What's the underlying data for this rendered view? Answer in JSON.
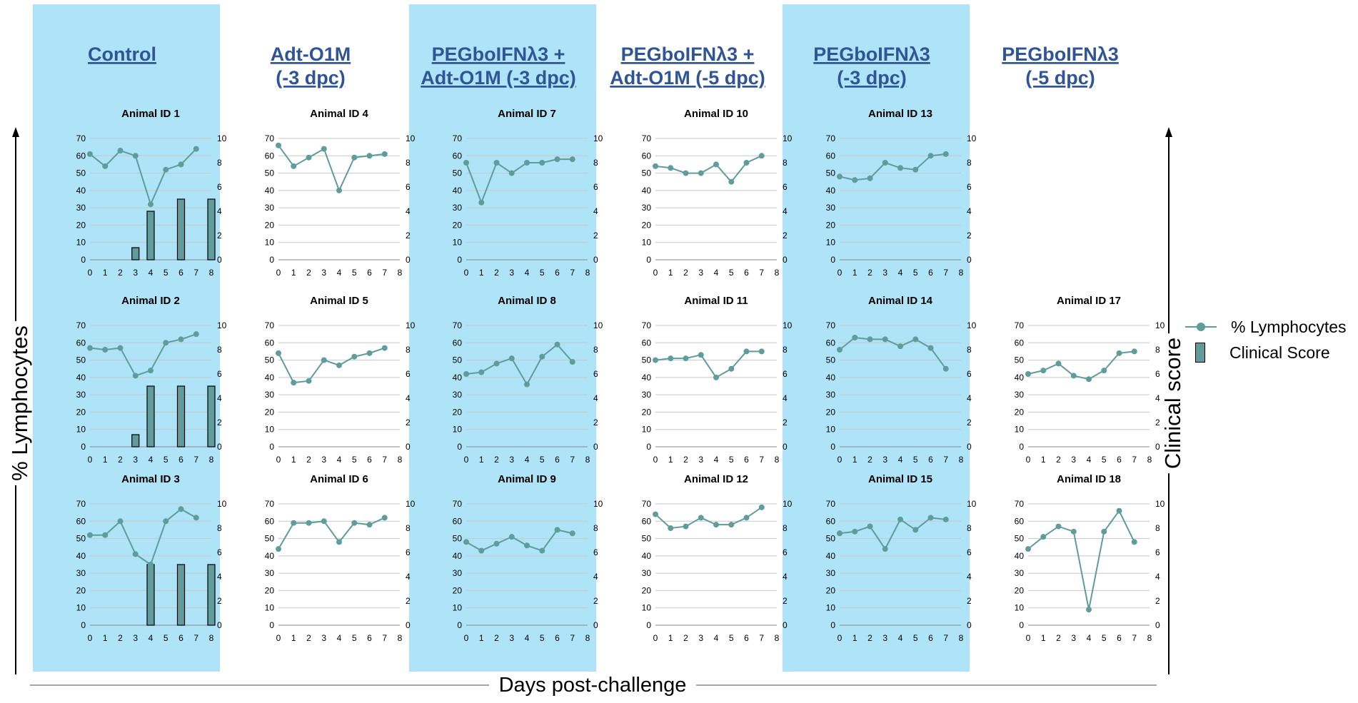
{
  "colors": {
    "panel_bg": "#aee3f8",
    "series": "#5f9c9b",
    "title_link": "#2f5597",
    "grid": "#c8c8c8"
  },
  "axis_labels": {
    "x": "Days post-challenge",
    "y_left": "% Lymphocytes",
    "y_right": "Clinical score"
  },
  "legend": [
    {
      "label": "% Lymphocytes",
      "icon": "line-with-dot"
    },
    {
      "label": "Clinical Score",
      "icon": "bar"
    }
  ],
  "groups": [
    {
      "title": "Control",
      "highlighted": true
    },
    {
      "title": "Adt-O1M\n(-3 dpc)",
      "highlighted": false
    },
    {
      "title": "PEGboIFNλ3 +\nAdt-O1M (-3 dpc)",
      "highlighted": true
    },
    {
      "title": "PEGboIFNλ3 +\nAdt-O1M (-5 dpc)",
      "highlighted": false
    },
    {
      "title": "PEGboIFNλ3\n(-3 dpc)",
      "highlighted": true
    },
    {
      "title": "PEGboIFNλ3\n(-5 dpc)",
      "highlighted": false
    }
  ],
  "chart_data": [
    {
      "type": "line",
      "title": "Animal ID 1",
      "group": 0,
      "row": 0,
      "x_ticks": [
        "0",
        "1",
        "2",
        "3",
        "4",
        "5",
        "6",
        "7",
        "8"
      ],
      "ylim": [
        0,
        70
      ],
      "y2lim": [
        0,
        10
      ],
      "lymphocytes": {
        "x": [
          0,
          1,
          2,
          3,
          4,
          5,
          6,
          7
        ],
        "y": [
          61,
          54,
          63,
          60,
          32,
          52,
          55,
          64
        ]
      },
      "clinical_score": {
        "x": [
          3,
          4,
          6,
          8
        ],
        "y": [
          1,
          4,
          5,
          5
        ]
      }
    },
    {
      "type": "line",
      "title": "Animal ID 2",
      "group": 0,
      "row": 1,
      "x_ticks": [
        "0",
        "1",
        "2",
        "3",
        "4",
        "5",
        "6",
        "7",
        "8"
      ],
      "ylim": [
        0,
        70
      ],
      "y2lim": [
        0,
        10
      ],
      "lymphocytes": {
        "x": [
          0,
          1,
          2,
          3,
          4,
          5,
          6,
          7
        ],
        "y": [
          57,
          56,
          57,
          41,
          44,
          60,
          62,
          65
        ]
      },
      "clinical_score": {
        "x": [
          3,
          4,
          6,
          8
        ],
        "y": [
          1,
          5,
          5,
          5
        ]
      }
    },
    {
      "type": "line",
      "title": "Animal ID 3",
      "group": 0,
      "row": 2,
      "x_ticks": [
        "0",
        "1",
        "2",
        "3",
        "4",
        "5",
        "6",
        "7",
        "8"
      ],
      "ylim": [
        0,
        70
      ],
      "y2lim": [
        0,
        10
      ],
      "lymphocytes": {
        "x": [
          0,
          1,
          2,
          3,
          4,
          5,
          6,
          7
        ],
        "y": [
          52,
          52,
          60,
          41,
          35,
          60,
          67,
          62
        ]
      },
      "clinical_score": {
        "x": [
          4,
          6,
          8
        ],
        "y": [
          5,
          5,
          5
        ]
      }
    },
    {
      "type": "line",
      "title": "Animal ID 4",
      "group": 1,
      "row": 0,
      "x_ticks": [
        "0",
        "1",
        "2",
        "3",
        "4",
        "5",
        "6",
        "7",
        "8"
      ],
      "ylim": [
        0,
        70
      ],
      "y2lim": [
        0,
        10
      ],
      "lymphocytes": {
        "x": [
          0,
          1,
          2,
          3,
          4,
          5,
          6,
          7
        ],
        "y": [
          66,
          54,
          59,
          64,
          40,
          59,
          60,
          61
        ]
      },
      "clinical_score": {
        "x": [],
        "y": []
      }
    },
    {
      "type": "line",
      "title": "Animal ID 5",
      "group": 1,
      "row": 1,
      "x_ticks": [
        "0",
        "1",
        "2",
        "3",
        "4",
        "5",
        "6",
        "7",
        "8"
      ],
      "ylim": [
        0,
        70
      ],
      "y2lim": [
        0,
        10
      ],
      "lymphocytes": {
        "x": [
          0,
          1,
          2,
          3,
          4,
          5,
          6,
          7
        ],
        "y": [
          54,
          37,
          38,
          50,
          47,
          52,
          54,
          57
        ]
      },
      "clinical_score": {
        "x": [],
        "y": []
      }
    },
    {
      "type": "line",
      "title": "Animal ID 6",
      "group": 1,
      "row": 2,
      "x_ticks": [
        "0",
        "1",
        "2",
        "3",
        "4",
        "5",
        "6",
        "7",
        "8"
      ],
      "ylim": [
        0,
        70
      ],
      "y2lim": [
        0,
        10
      ],
      "lymphocytes": {
        "x": [
          0,
          1,
          2,
          3,
          4,
          5,
          6,
          7
        ],
        "y": [
          44,
          59,
          59,
          60,
          48,
          59,
          58,
          62
        ]
      },
      "clinical_score": {
        "x": [],
        "y": []
      }
    },
    {
      "type": "line",
      "title": "Animal ID 7",
      "group": 2,
      "row": 0,
      "x_ticks": [
        "0",
        "1",
        "2",
        "3",
        "4",
        "5",
        "6",
        "7",
        "8"
      ],
      "ylim": [
        0,
        70
      ],
      "y2lim": [
        0,
        10
      ],
      "lymphocytes": {
        "x": [
          0,
          1,
          2,
          3,
          4,
          5,
          6,
          7
        ],
        "y": [
          56,
          33,
          56,
          50,
          56,
          56,
          58,
          58
        ]
      },
      "clinical_score": {
        "x": [],
        "y": []
      }
    },
    {
      "type": "line",
      "title": "Animal ID 8",
      "group": 2,
      "row": 1,
      "x_ticks": [
        "0",
        "1",
        "2",
        "3",
        "4",
        "5",
        "6",
        "7",
        "8"
      ],
      "ylim": [
        0,
        70
      ],
      "y2lim": [
        0,
        10
      ],
      "lymphocytes": {
        "x": [
          0,
          1,
          2,
          3,
          4,
          5,
          6,
          7
        ],
        "y": [
          42,
          43,
          48,
          51,
          36,
          52,
          59,
          49
        ]
      },
      "clinical_score": {
        "x": [],
        "y": []
      }
    },
    {
      "type": "line",
      "title": "Animal ID 9",
      "group": 2,
      "row": 2,
      "x_ticks": [
        "0",
        "1",
        "2",
        "3",
        "4",
        "5",
        "6",
        "7",
        "8"
      ],
      "ylim": [
        0,
        70
      ],
      "y2lim": [
        0,
        10
      ],
      "lymphocytes": {
        "x": [
          0,
          1,
          2,
          3,
          4,
          5,
          6,
          7
        ],
        "y": [
          48,
          43,
          47,
          51,
          46,
          43,
          55,
          53
        ]
      },
      "clinical_score": {
        "x": [],
        "y": []
      }
    },
    {
      "type": "line",
      "title": "Animal ID 10",
      "group": 3,
      "row": 0,
      "x_ticks": [
        "0",
        "1",
        "2",
        "3",
        "4",
        "5",
        "6",
        "7",
        "8"
      ],
      "ylim": [
        0,
        70
      ],
      "y2lim": [
        0,
        10
      ],
      "lymphocytes": {
        "x": [
          0,
          1,
          2,
          3,
          4,
          5,
          6,
          7
        ],
        "y": [
          54,
          53,
          50,
          50,
          55,
          45,
          56,
          60
        ]
      },
      "clinical_score": {
        "x": [],
        "y": []
      }
    },
    {
      "type": "line",
      "title": "Animal ID 11",
      "group": 3,
      "row": 1,
      "x_ticks": [
        "0",
        "1",
        "2",
        "3",
        "4",
        "5",
        "6",
        "7",
        "8"
      ],
      "ylim": [
        0,
        70
      ],
      "y2lim": [
        0,
        10
      ],
      "lymphocytes": {
        "x": [
          0,
          1,
          2,
          3,
          4,
          5,
          6,
          7
        ],
        "y": [
          50,
          51,
          51,
          53,
          40,
          45,
          55,
          55
        ]
      },
      "clinical_score": {
        "x": [],
        "y": []
      }
    },
    {
      "type": "line",
      "title": "Animal ID 12",
      "group": 3,
      "row": 2,
      "x_ticks": [
        "0",
        "1",
        "2",
        "3",
        "4",
        "5",
        "6",
        "7",
        "8"
      ],
      "ylim": [
        0,
        70
      ],
      "y2lim": [
        0,
        10
      ],
      "lymphocytes": {
        "x": [
          0,
          1,
          2,
          3,
          4,
          5,
          6,
          7
        ],
        "y": [
          64,
          56,
          57,
          62,
          58,
          58,
          62,
          68
        ]
      },
      "clinical_score": {
        "x": [],
        "y": []
      }
    },
    {
      "type": "line",
      "title": "Animal ID 13",
      "group": 4,
      "row": 0,
      "x_ticks": [
        "0",
        "1",
        "2",
        "3",
        "4",
        "5",
        "6",
        "7",
        "8"
      ],
      "ylim": [
        0,
        70
      ],
      "y2lim": [
        0,
        10
      ],
      "lymphocytes": {
        "x": [
          0,
          1,
          2,
          3,
          4,
          5,
          6,
          7
        ],
        "y": [
          48,
          46,
          47,
          56,
          53,
          52,
          60,
          61
        ]
      },
      "clinical_score": {
        "x": [],
        "y": []
      }
    },
    {
      "type": "line",
      "title": "Animal ID 14",
      "group": 4,
      "row": 1,
      "x_ticks": [
        "0",
        "1",
        "2",
        "3",
        "4",
        "5",
        "6",
        "7",
        "8"
      ],
      "ylim": [
        0,
        70
      ],
      "y2lim": [
        0,
        10
      ],
      "lymphocytes": {
        "x": [
          0,
          1,
          2,
          3,
          4,
          5,
          6,
          7
        ],
        "y": [
          56,
          63,
          62,
          62,
          58,
          62,
          57,
          45
        ]
      },
      "clinical_score": {
        "x": [],
        "y": []
      }
    },
    {
      "type": "line",
      "title": "Animal ID 15",
      "group": 4,
      "row": 2,
      "x_ticks": [
        "0",
        "1",
        "2",
        "3",
        "4",
        "5",
        "6",
        "7",
        "8"
      ],
      "ylim": [
        0,
        70
      ],
      "y2lim": [
        0,
        10
      ],
      "lymphocytes": {
        "x": [
          0,
          1,
          2,
          3,
          4,
          5,
          6,
          7
        ],
        "y": [
          53,
          54,
          57,
          44,
          61,
          55,
          62,
          61
        ]
      },
      "clinical_score": {
        "x": [],
        "y": []
      }
    },
    {
      "type": "line",
      "title": "Animal ID 17",
      "group": 5,
      "row": 1,
      "x_ticks": [
        "0",
        "1",
        "2",
        "3",
        "4",
        "5",
        "6",
        "7",
        "8"
      ],
      "ylim": [
        0,
        70
      ],
      "y2lim": [
        0,
        10
      ],
      "lymphocytes": {
        "x": [
          0,
          1,
          2,
          3,
          4,
          5,
          6,
          7
        ],
        "y": [
          42,
          44,
          48,
          41,
          39,
          44,
          54,
          55
        ]
      },
      "clinical_score": {
        "x": [],
        "y": []
      }
    },
    {
      "type": "line",
      "title": "Animal ID 18",
      "group": 5,
      "row": 2,
      "x_ticks": [
        "0",
        "1",
        "2",
        "3",
        "4",
        "5",
        "6",
        "7",
        "8"
      ],
      "ylim": [
        0,
        70
      ],
      "y2lim": [
        0,
        10
      ],
      "lymphocytes": {
        "x": [
          0,
          1,
          2,
          3,
          4,
          5,
          6,
          7
        ],
        "y": [
          44,
          51,
          57,
          54,
          9,
          54,
          66,
          48
        ]
      },
      "clinical_score": {
        "x": [],
        "y": []
      }
    }
  ],
  "y_ticks_left": [
    "0",
    "10",
    "20",
    "30",
    "40",
    "50",
    "60",
    "70"
  ],
  "y_ticks_right": [
    "0",
    "2",
    "4",
    "6",
    "8",
    "10"
  ]
}
